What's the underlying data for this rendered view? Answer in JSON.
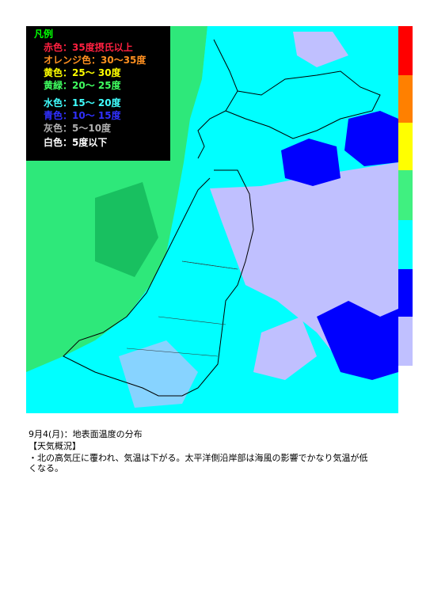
{
  "legend": {
    "title": "凡例",
    "items": [
      {
        "label": "赤色：35度摂氏以上"
      },
      {
        "label": "オレンジ色：30～35度"
      },
      {
        "label": "黄色：25～ 30度"
      },
      {
        "label": "黄緑：20～ 25度"
      },
      {
        "label": "水色：15～ 20度"
      },
      {
        "label": "青色：10～ 15度"
      },
      {
        "label": "灰色：5～10度"
      },
      {
        "label": "白色：5度以下"
      }
    ]
  },
  "caption": "9月4(月)：地表面温度の分布",
  "section_heading": "【天気概況】",
  "body_lines": [
    "・北の高気圧に覆われ、気温は下がる。太平洋側沿岸部は海風の影響でかなり気温が低",
    "くなる。"
  ]
}
